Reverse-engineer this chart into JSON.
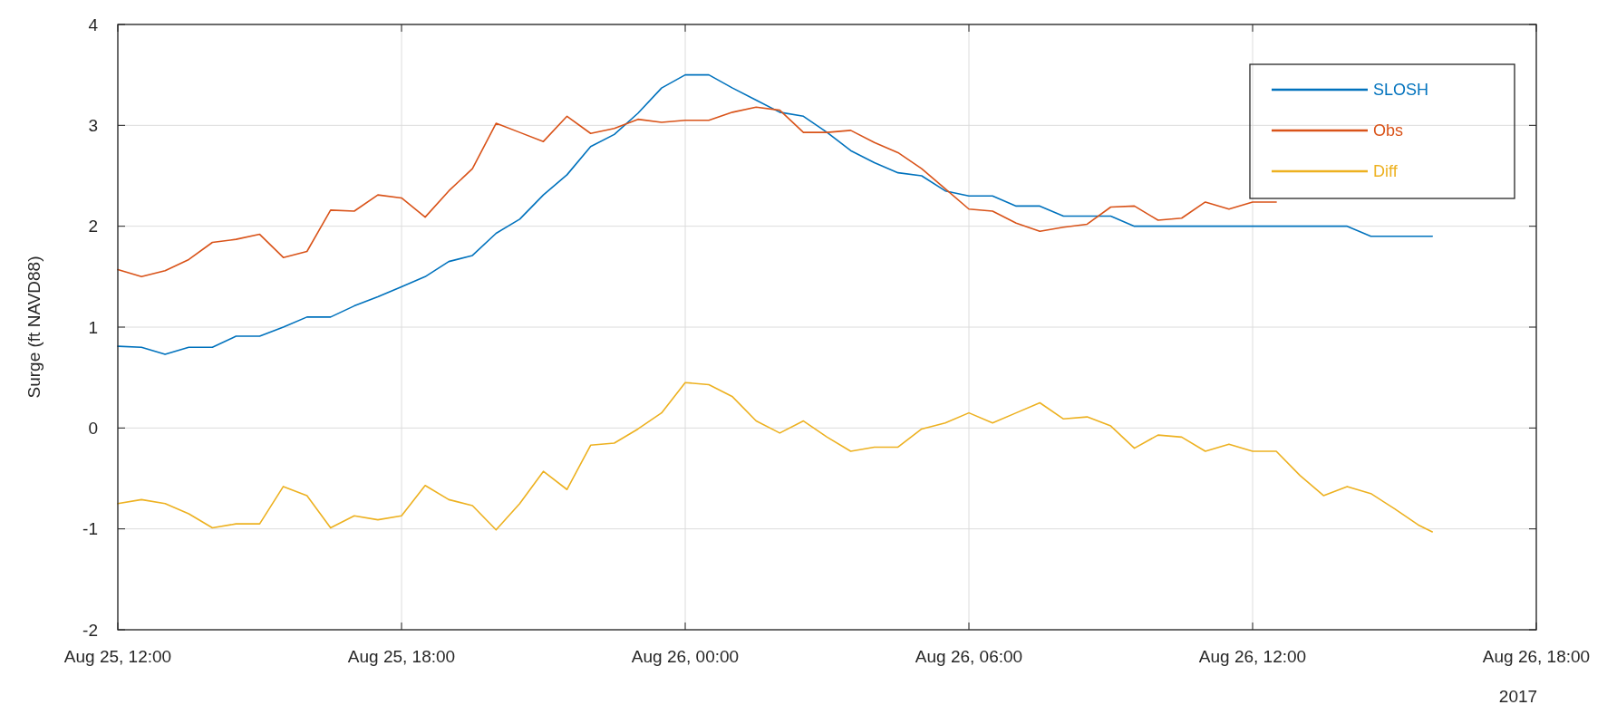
{
  "chart_data": {
    "type": "line",
    "ylabel": "Surge (ft NAVD88)",
    "annotations": [
      "2017"
    ],
    "x": [
      "2017-08-25T12:00",
      "2017-08-25T12:30",
      "2017-08-25T13:00",
      "2017-08-25T13:30",
      "2017-08-25T14:00",
      "2017-08-25T14:30",
      "2017-08-25T15:00",
      "2017-08-25T15:30",
      "2017-08-25T16:00",
      "2017-08-25T16:30",
      "2017-08-25T17:00",
      "2017-08-25T17:30",
      "2017-08-25T18:00",
      "2017-08-25T18:30",
      "2017-08-25T19:00",
      "2017-08-25T19:30",
      "2017-08-25T20:00",
      "2017-08-25T20:30",
      "2017-08-25T21:00",
      "2017-08-25T21:30",
      "2017-08-25T22:00",
      "2017-08-25T22:30",
      "2017-08-25T23:00",
      "2017-08-25T23:30",
      "2017-08-26T00:00",
      "2017-08-26T00:30",
      "2017-08-26T01:00",
      "2017-08-26T01:30",
      "2017-08-26T02:00",
      "2017-08-26T02:30",
      "2017-08-26T03:00",
      "2017-08-26T03:30",
      "2017-08-26T04:00",
      "2017-08-26T04:30",
      "2017-08-26T05:00",
      "2017-08-26T05:30",
      "2017-08-26T06:00",
      "2017-08-26T06:30",
      "2017-08-26T07:00",
      "2017-08-26T07:30",
      "2017-08-26T08:00",
      "2017-08-26T08:30",
      "2017-08-26T09:00",
      "2017-08-26T09:30",
      "2017-08-26T10:00",
      "2017-08-26T10:30",
      "2017-08-26T11:00",
      "2017-08-26T11:30",
      "2017-08-26T12:00",
      "2017-08-26T12:30",
      "2017-08-26T13:00",
      "2017-08-26T13:30",
      "2017-08-26T14:00",
      "2017-08-26T14:30",
      "2017-08-26T15:00",
      "2017-08-26T15:30",
      "2017-08-26T15:48"
    ],
    "series": [
      {
        "name": "SLOSH",
        "color": "#0072bd",
        "values": [
          0.81,
          0.8,
          0.73,
          0.8,
          0.8,
          0.91,
          0.91,
          1.0,
          1.1,
          1.1,
          1.21,
          1.3,
          1.4,
          1.5,
          1.65,
          1.71,
          1.93,
          2.07,
          2.31,
          2.51,
          2.79,
          2.91,
          3.12,
          3.37,
          3.5,
          3.5,
          3.37,
          3.25,
          3.13,
          3.09,
          2.93,
          2.75,
          2.63,
          2.53,
          2.5,
          2.35,
          2.3,
          2.3,
          2.2,
          2.2,
          2.1,
          2.1,
          2.1,
          2.0,
          2.0,
          2.0,
          2.0,
          2.0,
          2.0,
          2.0,
          2.0,
          2.0,
          2.0,
          1.9,
          1.9,
          1.9,
          1.9
        ]
      },
      {
        "name": "Obs",
        "color": "#d95319",
        "x": [
          "2017-08-25T12:00",
          "2017-08-25T12:30",
          "2017-08-25T13:00",
          "2017-08-25T13:30",
          "2017-08-25T14:00",
          "2017-08-25T14:30",
          "2017-08-25T15:00",
          "2017-08-25T15:30",
          "2017-08-25T16:00",
          "2017-08-25T16:30",
          "2017-08-25T17:00",
          "2017-08-25T17:30",
          "2017-08-25T18:00",
          "2017-08-25T18:30",
          "2017-08-25T19:00",
          "2017-08-25T19:30",
          "2017-08-25T20:00",
          "2017-08-25T20:30",
          "2017-08-25T21:00",
          "2017-08-25T21:30",
          "2017-08-25T22:00",
          "2017-08-25T22:30",
          "2017-08-25T23:00",
          "2017-08-25T23:30",
          "2017-08-26T00:00",
          "2017-08-26T00:30",
          "2017-08-26T01:00",
          "2017-08-26T01:30",
          "2017-08-26T02:00",
          "2017-08-26T02:30",
          "2017-08-26T03:00",
          "2017-08-26T03:30",
          "2017-08-26T04:00",
          "2017-08-26T04:30",
          "2017-08-26T05:00",
          "2017-08-26T05:30",
          "2017-08-26T06:00",
          "2017-08-26T06:30",
          "2017-08-26T07:00",
          "2017-08-26T07:30",
          "2017-08-26T08:00",
          "2017-08-26T08:30",
          "2017-08-26T09:00",
          "2017-08-26T09:30",
          "2017-08-26T10:00",
          "2017-08-26T10:30",
          "2017-08-26T11:00",
          "2017-08-26T11:30",
          "2017-08-26T12:00",
          "2017-08-26T12:30"
        ],
        "values": [
          1.57,
          1.5,
          1.56,
          1.67,
          1.84,
          1.87,
          1.92,
          1.69,
          1.75,
          2.16,
          2.15,
          2.31,
          2.28,
          2.09,
          2.35,
          2.57,
          3.02,
          2.93,
          2.84,
          3.09,
          2.92,
          2.97,
          3.06,
          3.03,
          3.05,
          3.05,
          3.13,
          3.18,
          3.15,
          2.93,
          2.93,
          2.95,
          2.83,
          2.73,
          2.57,
          2.37,
          2.17,
          2.15,
          2.03,
          1.95,
          1.99,
          2.02,
          2.19,
          2.2,
          2.06,
          2.08,
          2.24,
          2.17,
          2.24,
          2.24
        ]
      },
      {
        "name": "Diff",
        "color": "#edb120",
        "values": [
          -0.75,
          -0.71,
          -0.75,
          -0.85,
          -0.99,
          -0.95,
          -0.95,
          -0.58,
          -0.67,
          -0.99,
          -0.87,
          -0.91,
          -0.87,
          -0.57,
          -0.71,
          -0.77,
          -1.01,
          -0.75,
          -0.43,
          -0.61,
          -0.17,
          -0.15,
          -0.01,
          0.15,
          0.45,
          0.43,
          0.31,
          0.07,
          -0.05,
          0.07,
          -0.09,
          -0.23,
          -0.19,
          -0.19,
          -0.01,
          0.05,
          0.15,
          0.05,
          0.15,
          0.25,
          0.09,
          0.11,
          0.02,
          -0.2,
          -0.07,
          -0.09,
          -0.23,
          -0.16,
          -0.23,
          -0.23,
          -0.47,
          -0.67,
          -0.58,
          -0.65,
          -0.8,
          -0.96,
          -1.03
        ]
      }
    ],
    "xlim": [
      "2017-08-25T12:00",
      "2017-08-26T18:00"
    ],
    "xticks": [
      {
        "value": "2017-08-25T12:00",
        "label": "Aug 25, 12:00"
      },
      {
        "value": "2017-08-25T18:00",
        "label": "Aug 25, 18:00"
      },
      {
        "value": "2017-08-26T00:00",
        "label": "Aug 26, 00:00"
      },
      {
        "value": "2017-08-26T06:00",
        "label": "Aug 26, 06:00"
      },
      {
        "value": "2017-08-26T12:00",
        "label": "Aug 26, 12:00"
      },
      {
        "value": "2017-08-26T18:00",
        "label": "Aug 26, 18:00"
      }
    ],
    "ylim": [
      -2,
      4
    ],
    "yticks": [
      -2,
      -1,
      0,
      1,
      2,
      3,
      4
    ],
    "grid": true,
    "legend": "top right",
    "line_style": "solid",
    "marker": "none"
  }
}
